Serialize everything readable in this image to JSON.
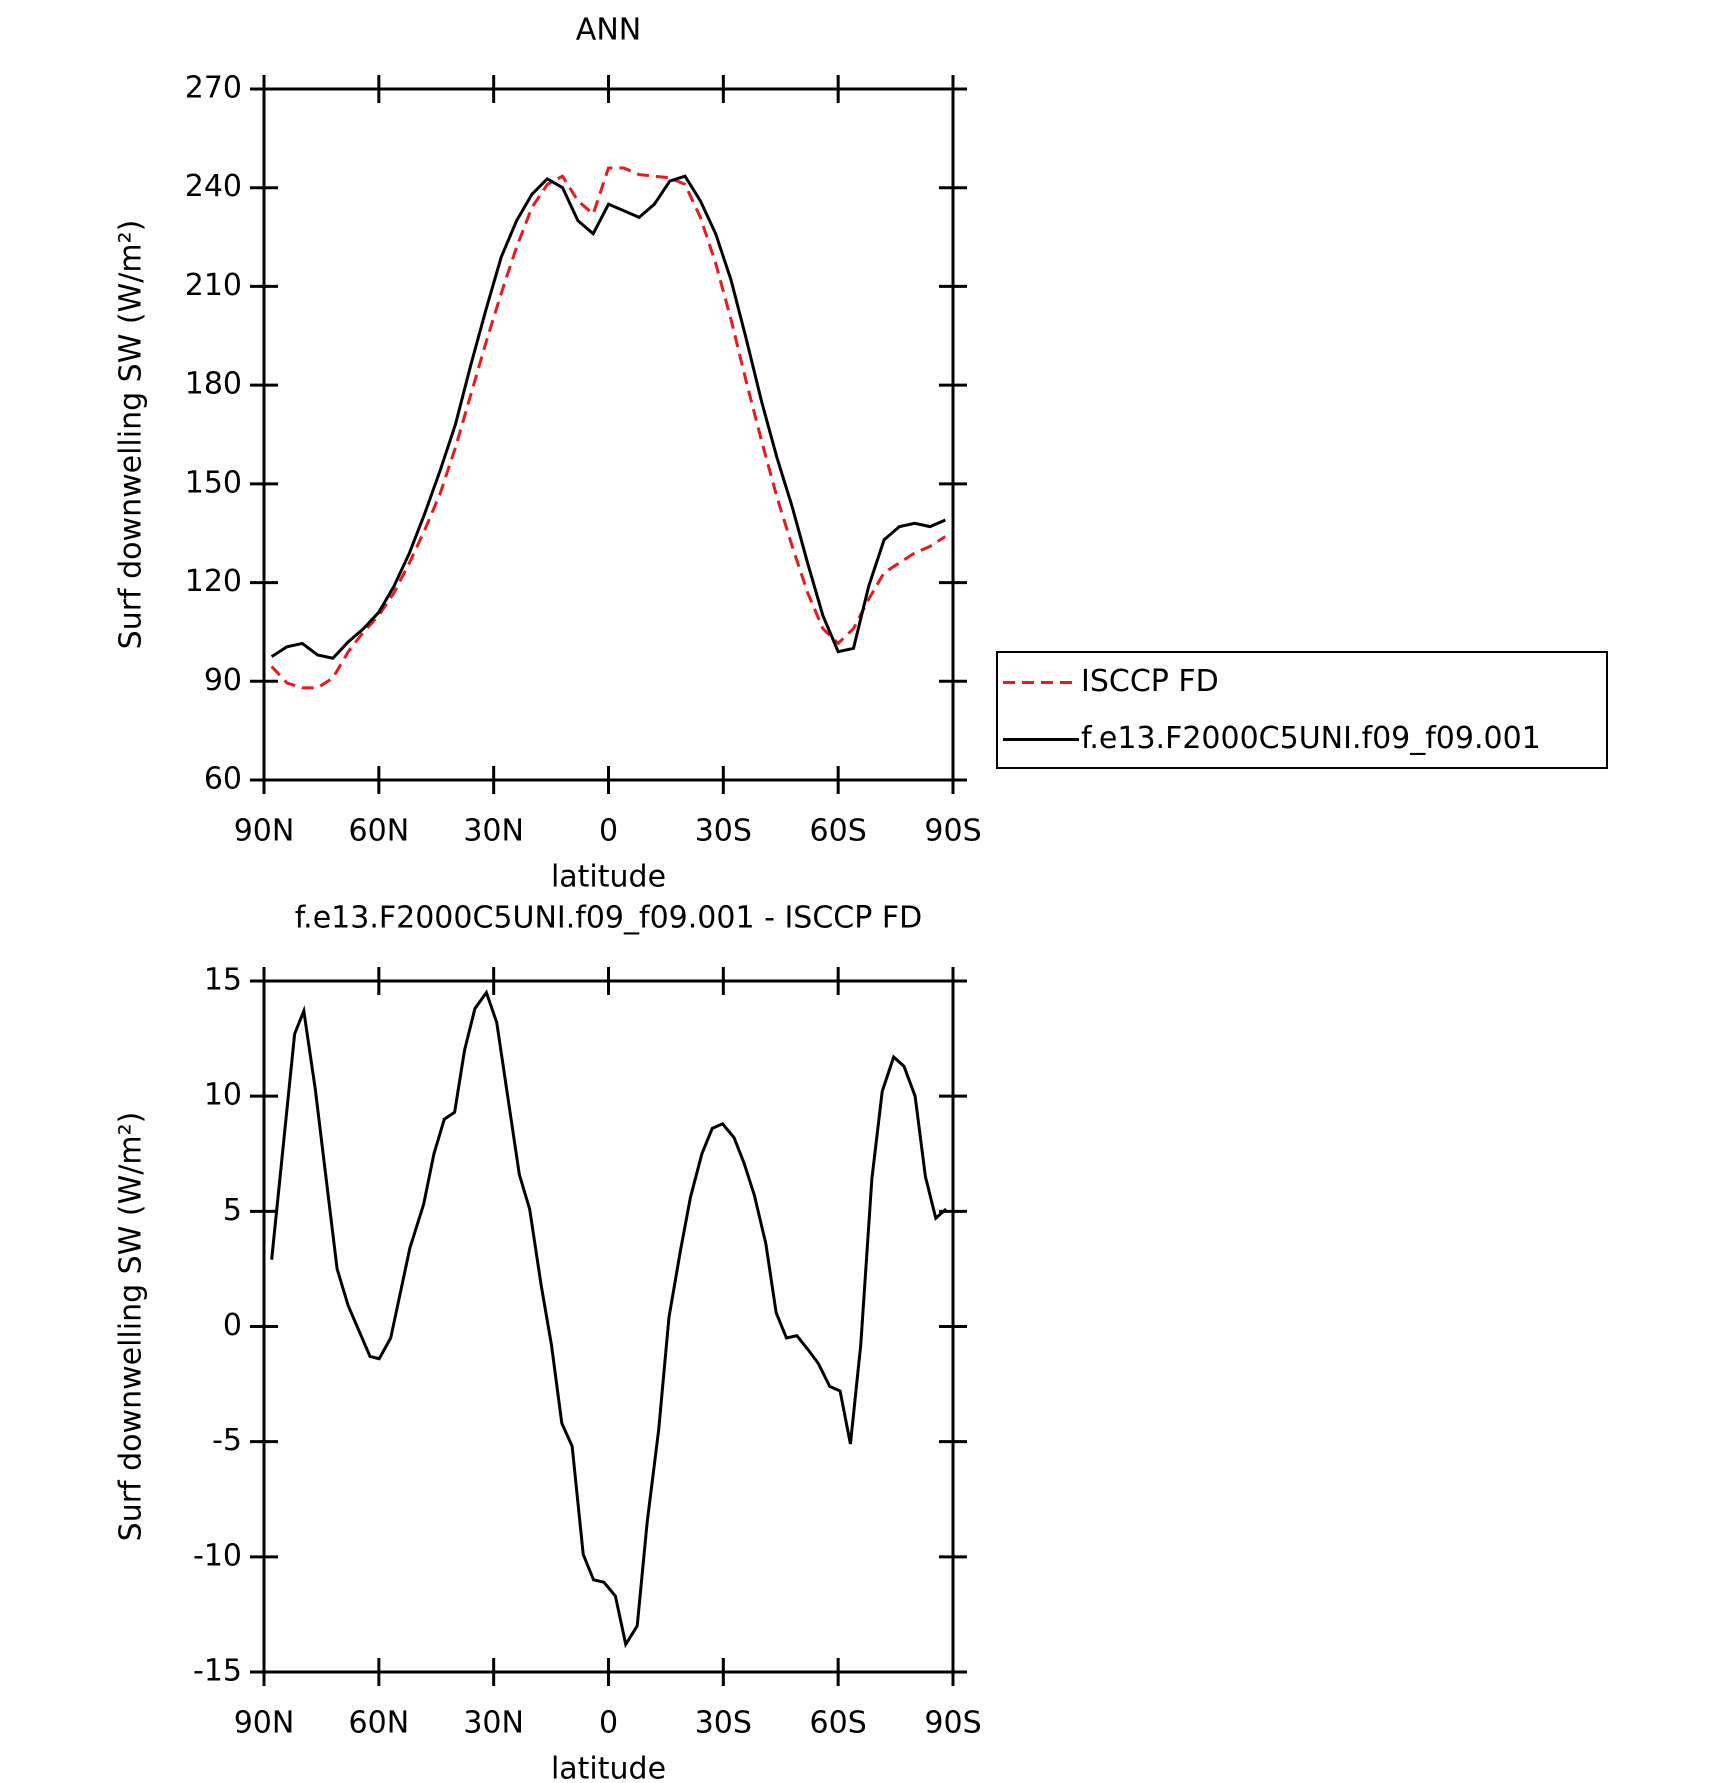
{
  "chart_data": [
    {
      "type": "line",
      "title": "ANN",
      "x_label": "latitude",
      "y_label": "Surf downwelling SW (W/m²)",
      "x": [
        88,
        84,
        80,
        76,
        72,
        68,
        64,
        60,
        56,
        52,
        48,
        44,
        40,
        36,
        32,
        28,
        24,
        20,
        16,
        12,
        8,
        4,
        0,
        -4,
        -8,
        -12,
        -16,
        -20,
        -24,
        -28,
        -32,
        -36,
        -40,
        -44,
        -48,
        -52,
        -56,
        -60,
        -64,
        -68,
        -72,
        -76,
        -80,
        -84,
        -88
      ],
      "series": [
        {
          "name": "ISCCP FD",
          "color": "#e8191f",
          "line_style": "dashed",
          "values": [
            94.5,
            89.5,
            88,
            88,
            91,
            99,
            105,
            110,
            117,
            126,
            136,
            147,
            161,
            177,
            193,
            208,
            222,
            234,
            241,
            243.5,
            236,
            232,
            246,
            246,
            244,
            243.5,
            243,
            241,
            231,
            217,
            200,
            181,
            163,
            146,
            131,
            117,
            106,
            101.5,
            106,
            115,
            123,
            126,
            129,
            131,
            134
          ]
        },
        {
          "name": "f.e13.F2000C5UNI.f09_f09.001",
          "color": "#000000",
          "line_style": "solid",
          "values": [
            97.5,
            100.5,
            101.5,
            98,
            97,
            102,
            106,
            111,
            119,
            129,
            141,
            154,
            168,
            186,
            203,
            219,
            230,
            238,
            242.7,
            240,
            230,
            226,
            235,
            233,
            231,
            235,
            242,
            243.5,
            236,
            226,
            212,
            194,
            175,
            158,
            143,
            126,
            110,
            99,
            100,
            119,
            133,
            137,
            138,
            137,
            139
          ]
        }
      ],
      "xlim": [
        90,
        -90
      ],
      "xticks": [
        {
          "value": 90,
          "label": "90N"
        },
        {
          "value": 60,
          "label": "60N"
        },
        {
          "value": 30,
          "label": "30N"
        },
        0,
        {
          "value": -30,
          "label": "30S"
        },
        {
          "value": -60,
          "label": "60S"
        },
        {
          "value": -90,
          "label": "90S"
        }
      ],
      "ylim": [
        60,
        270
      ],
      "yticks": [
        60,
        90,
        120,
        150,
        180,
        210,
        240,
        270
      ],
      "legend": "right"
    },
    {
      "type": "line",
      "title": "f.e13.F2000C5UNI.f09_f09.001 - ISCCP FD",
      "x_label": "latitude",
      "y_label": "Surf downwelling SW (W/m²)",
      "x": [
        88,
        82,
        79.6,
        76.6,
        70.9,
        68,
        62.3,
        59.9,
        56.9,
        51.9,
        48.3,
        45.6,
        42.9,
        40.2,
        37.6,
        34.9,
        31.9,
        29.2,
        23.3,
        20.6,
        17.6,
        14.9,
        12.2,
        9.5,
        6.6,
        3.9,
        1.2,
        -1.8,
        -4.5,
        -7.5,
        -10.1,
        -13.1,
        -15.8,
        -18.8,
        -21.4,
        -24.4,
        -27.1,
        -29.8,
        -32.8,
        -35.4,
        -38.1,
        -41.1,
        -43.8,
        -46.5,
        -49.2,
        -52.1,
        -54.8,
        -57.8,
        -60.5,
        -63.2,
        -65.9,
        -68.8,
        -71.5,
        -74.5,
        -77.2,
        -80.1,
        -82.8,
        -85.5,
        -88.2
      ],
      "series": [
        {
          "color": "#000000",
          "line_style": "solid",
          "values": [
            2.9,
            12.7,
            13.7,
            10.3,
            2.5,
            0.9,
            -1.3,
            -1.4,
            -0.5,
            3.4,
            5.3,
            7.5,
            9,
            9.3,
            12,
            13.8,
            14.5,
            13.2,
            6.6,
            5.1,
            1.8,
            -0.8,
            -4.2,
            -5.2,
            -9.9,
            -11,
            -11.1,
            -11.7,
            -13.8,
            -13,
            -8.5,
            -4.5,
            0.4,
            3.3,
            5.6,
            7.5,
            8.6,
            8.8,
            8.2,
            7.1,
            5.7,
            3.6,
            0.6,
            -0.5,
            -0.4,
            -1,
            -1.6,
            -2.6,
            -2.8,
            -5.1,
            -0.8,
            6.4,
            10.2,
            11.7,
            11.3,
            10,
            6.5,
            4.7,
            5.1
          ]
        }
      ],
      "xlim": [
        90,
        -90
      ],
      "xticks": [
        {
          "value": 90,
          "label": "90N"
        },
        {
          "value": 60,
          "label": "60N"
        },
        {
          "value": 30,
          "label": "30N"
        },
        0,
        {
          "value": -30,
          "label": "30S"
        },
        {
          "value": -60,
          "label": "60S"
        },
        {
          "value": -90,
          "label": "90S"
        }
      ],
      "ylim": [
        -15,
        15
      ],
      "yticks": [
        -15,
        -10,
        -5,
        0,
        5,
        10,
        15
      ]
    }
  ]
}
